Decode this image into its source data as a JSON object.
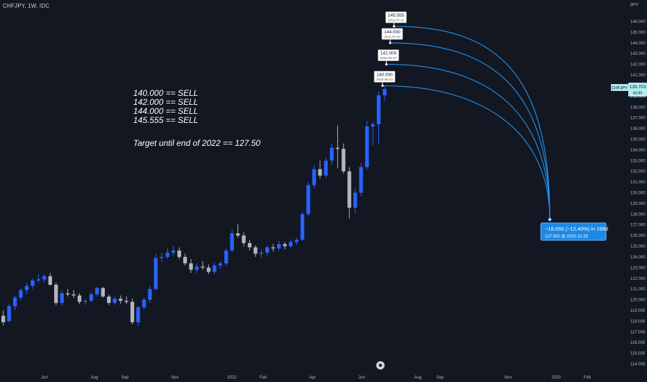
{
  "header": {
    "symbol": "CHFJPY, 1W, IDC",
    "currency": "JPY"
  },
  "annotations": {
    "lines": [
      "140.000 == SELL",
      "142.000 == SELL",
      "144.000 == SELL",
      "145.555 == SELL"
    ],
    "target": "Target until end of 2022 == 127.50"
  },
  "price_tag": {
    "symbol": "CHFJPY",
    "value": "139.703",
    "countdown": "4d 8h"
  },
  "measure_box": {
    "line1": "−18.055 (−12.40%) in 168d",
    "line2": "127.500 @ 2022-12-25"
  },
  "colors": {
    "background": "#131722",
    "up_candle": "#2962ff",
    "down_candle": "#b2b5be",
    "arc": "#2196f3",
    "measure_box": "#1e88e5"
  },
  "chart_data": {
    "type": "candlestick",
    "x_tick_labels": [
      "Jun",
      "Aug",
      "Sep",
      "Nov",
      "2022",
      "Feb",
      "Apr",
      "Jun",
      "Aug",
      "Sep",
      "Nov",
      "2023",
      "Feb"
    ],
    "y_ticks": [
      114,
      115,
      116,
      117,
      118,
      119,
      120,
      121,
      122,
      123,
      124,
      125,
      126,
      127,
      128,
      129,
      130,
      131,
      132,
      133,
      134,
      135,
      136,
      137,
      138,
      139,
      140,
      141,
      142,
      143,
      144,
      145,
      146
    ],
    "ylim": [
      113.5,
      147.2
    ],
    "candles": [
      [
        118.5,
        119.0,
        117.6,
        117.9
      ],
      [
        118.0,
        119.6,
        117.9,
        119.4
      ],
      [
        119.4,
        120.4,
        119.0,
        120.2
      ],
      [
        120.2,
        121.1,
        119.9,
        120.9
      ],
      [
        120.9,
        121.6,
        120.5,
        121.3
      ],
      [
        121.3,
        122.0,
        121.0,
        121.8
      ],
      [
        121.8,
        122.4,
        121.6,
        121.9
      ],
      [
        121.9,
        122.4,
        121.6,
        122.2
      ],
      [
        122.2,
        122.5,
        121.3,
        121.4
      ],
      [
        121.4,
        121.6,
        119.5,
        119.7
      ],
      [
        119.7,
        120.9,
        119.4,
        120.6
      ],
      [
        120.6,
        121.0,
        120.3,
        120.5
      ],
      [
        120.5,
        120.9,
        120.2,
        120.4
      ],
      [
        120.4,
        120.6,
        119.6,
        119.8
      ],
      [
        119.8,
        120.1,
        119.5,
        119.9
      ],
      [
        119.9,
        120.7,
        119.8,
        120.5
      ],
      [
        120.5,
        121.2,
        120.3,
        121.1
      ],
      [
        121.1,
        121.2,
        120.2,
        120.3
      ],
      [
        120.3,
        120.5,
        119.5,
        119.7
      ],
      [
        119.7,
        120.3,
        119.5,
        120.1
      ],
      [
        120.1,
        120.4,
        119.6,
        119.9
      ],
      [
        119.9,
        120.3,
        119.6,
        119.8
      ],
      [
        119.8,
        120.1,
        117.7,
        117.9
      ],
      [
        117.9,
        119.4,
        117.5,
        119.3
      ],
      [
        119.3,
        120.2,
        119.1,
        120.0
      ],
      [
        120.0,
        121.3,
        119.7,
        121.0
      ],
      [
        121.0,
        124.3,
        120.9,
        123.9
      ],
      [
        123.9,
        124.4,
        123.5,
        124.0
      ],
      [
        124.0,
        124.8,
        123.8,
        124.4
      ],
      [
        124.4,
        125.0,
        124.1,
        124.6
      ],
      [
        124.6,
        124.9,
        123.8,
        124.0
      ],
      [
        124.0,
        124.3,
        123.2,
        123.4
      ],
      [
        123.4,
        123.8,
        122.5,
        122.8
      ],
      [
        122.8,
        123.4,
        122.5,
        123.1
      ],
      [
        123.1,
        123.6,
        122.8,
        123.0
      ],
      [
        123.0,
        123.3,
        122.4,
        122.6
      ],
      [
        122.6,
        123.5,
        122.4,
        123.2
      ],
      [
        123.2,
        123.6,
        122.9,
        123.4
      ],
      [
        123.4,
        124.8,
        123.2,
        124.6
      ],
      [
        124.6,
        126.5,
        124.4,
        126.2
      ],
      [
        126.2,
        127.1,
        125.8,
        126.0
      ],
      [
        126.0,
        126.3,
        125.0,
        125.3
      ],
      [
        125.3,
        125.6,
        124.6,
        124.9
      ],
      [
        124.9,
        125.1,
        124.0,
        124.3
      ],
      [
        124.3,
        124.7,
        123.9,
        124.4
      ],
      [
        124.4,
        125.1,
        124.1,
        124.9
      ],
      [
        124.9,
        125.2,
        124.5,
        124.8
      ],
      [
        124.8,
        125.5,
        124.6,
        125.2
      ],
      [
        125.2,
        125.4,
        124.7,
        125.0
      ],
      [
        125.0,
        125.6,
        124.8,
        125.4
      ],
      [
        125.4,
        125.8,
        125.1,
        125.6
      ],
      [
        125.6,
        128.2,
        125.5,
        128.0
      ],
      [
        128.0,
        131.0,
        127.8,
        130.7
      ],
      [
        130.7,
        132.6,
        130.4,
        132.2
      ],
      [
        132.2,
        133.0,
        131.3,
        131.6
      ],
      [
        131.6,
        133.3,
        131.4,
        133.0
      ],
      [
        133.0,
        134.6,
        132.6,
        134.2
      ],
      [
        134.2,
        136.3,
        132.3,
        134.1
      ],
      [
        134.1,
        134.6,
        131.8,
        132.0
      ],
      [
        132.0,
        132.4,
        127.6,
        128.6
      ],
      [
        128.6,
        130.4,
        128.1,
        130.0
      ],
      [
        130.0,
        132.8,
        129.7,
        132.4
      ],
      [
        132.4,
        136.7,
        132.2,
        136.2
      ],
      [
        136.2,
        136.6,
        134.4,
        136.4
      ],
      [
        136.4,
        139.5,
        134.6,
        139.1
      ],
      [
        139.1,
        139.9,
        138.6,
        139.7
      ]
    ],
    "sell_levels": [
      {
        "price": 140.0,
        "price_label": "140.000",
        "date_label": "2022-06-20"
      },
      {
        "price": 142.0,
        "price_label": "142.000",
        "date_label": "2022-06-27"
      },
      {
        "price": 144.0,
        "price_label": "144.000",
        "date_label": "2022-07-04"
      },
      {
        "price": 145.555,
        "price_label": "145.555",
        "date_label": "2022-07-11"
      }
    ],
    "target_price": 127.5,
    "last_price": 139.703
  }
}
